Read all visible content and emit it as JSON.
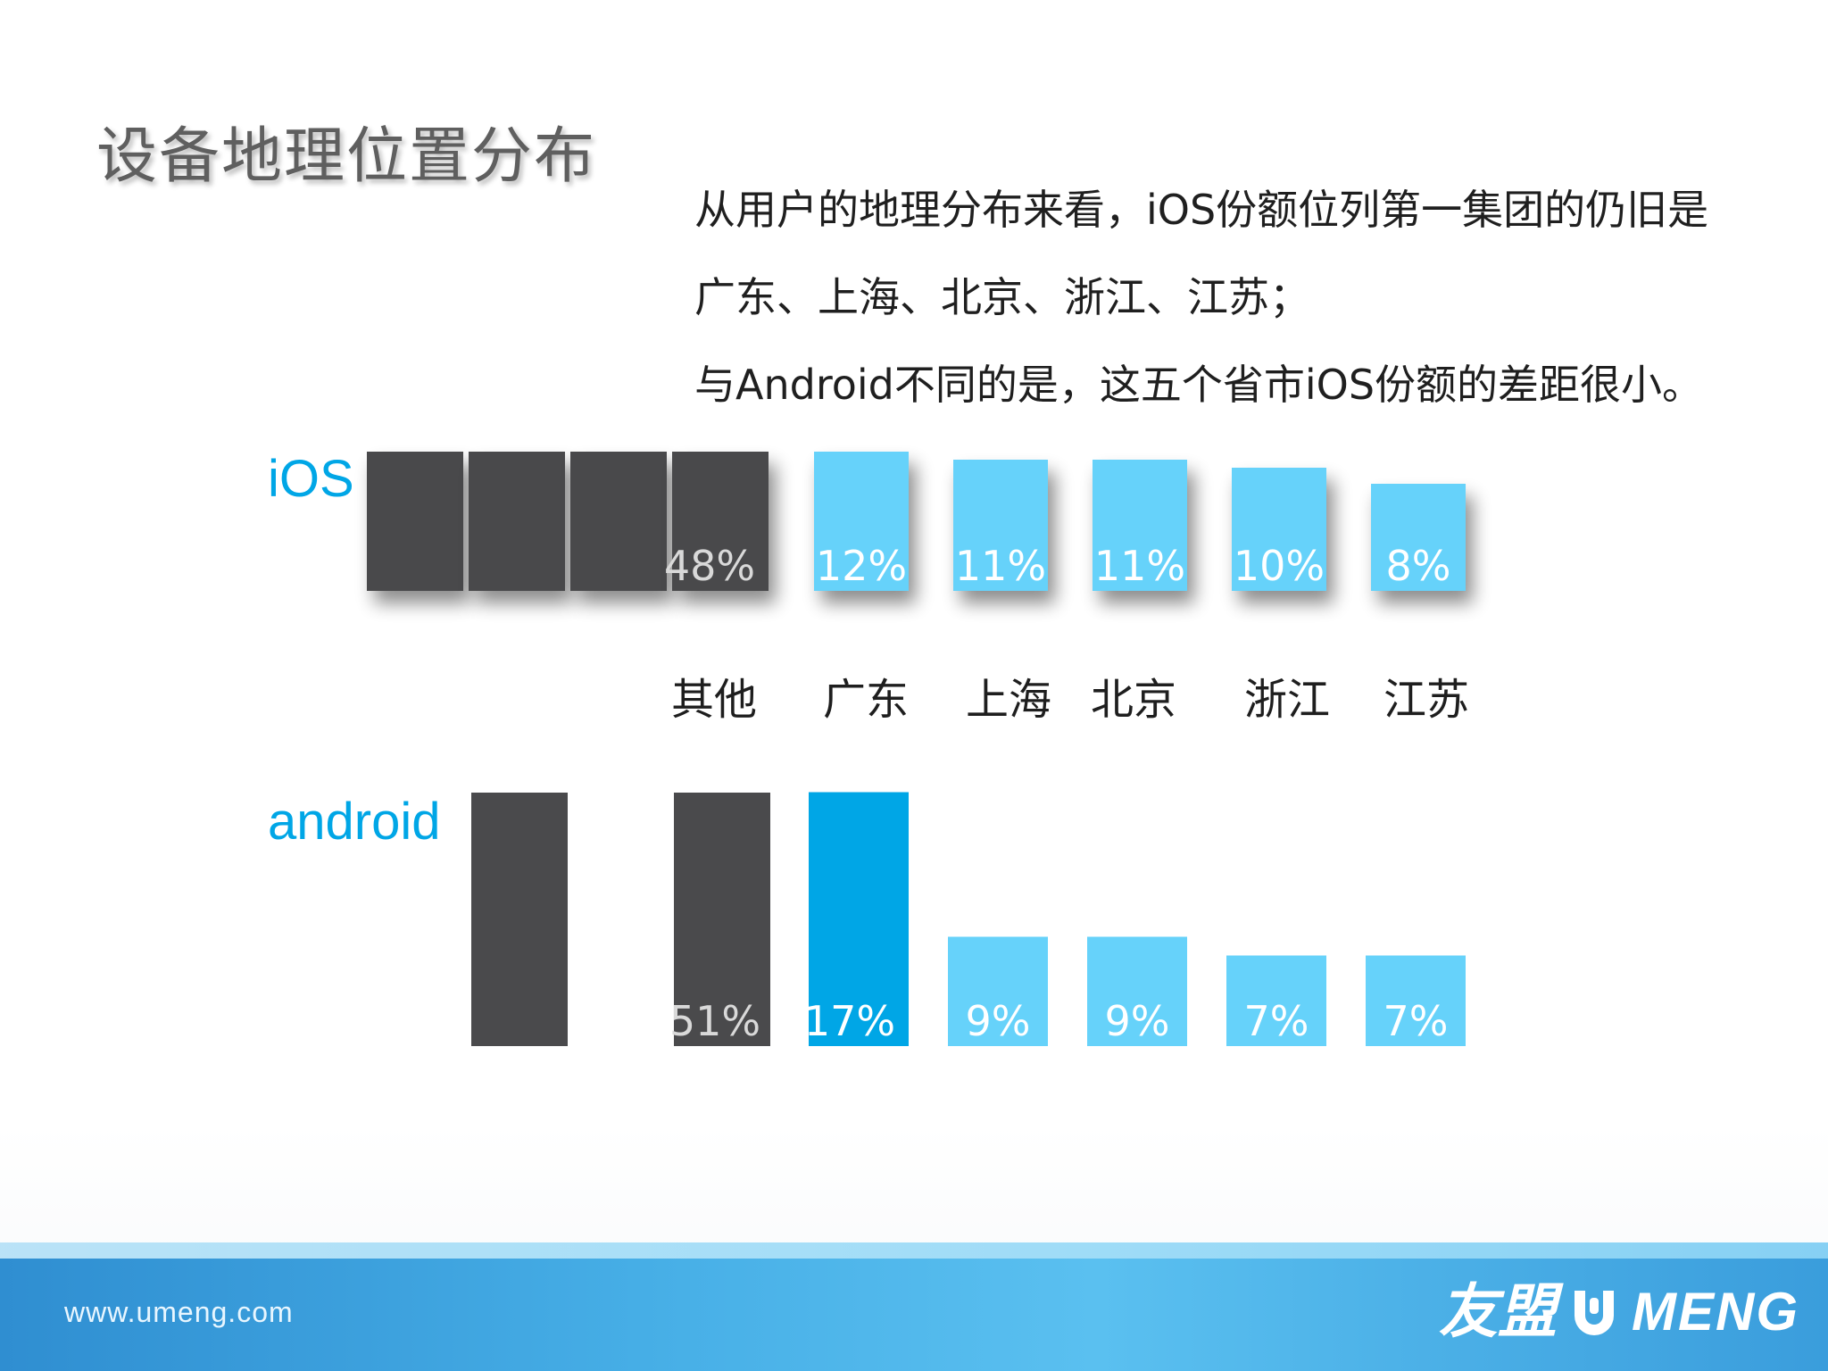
{
  "slide": {
    "title": "设备地理位置分布",
    "description_lines": [
      "从用户的地理分布来看，iOS份额位列第一集团的仍旧是",
      "广东、上海、北京、浙江、江苏；",
      "与Android不同的是，这五个省市iOS份额的差距很小。"
    ]
  },
  "chart_data": {
    "type": "bar",
    "categories": [
      "其他",
      "广东",
      "上海",
      "北京",
      "浙江",
      "江苏"
    ],
    "series": [
      {
        "name": "iOS",
        "values": [
          48,
          12,
          11,
          11,
          10,
          8
        ],
        "labels": [
          "48%",
          "12%",
          "11%",
          "11%",
          "10%",
          "8%"
        ]
      },
      {
        "name": "android",
        "values": [
          51,
          17,
          9,
          9,
          7,
          7
        ],
        "labels": [
          "51%",
          "17%",
          "9%",
          "9%",
          "7%",
          "7%"
        ]
      }
    ],
    "unit": "%",
    "colors": {
      "other": "#4a4a4c",
      "highlight": "#00a6e6",
      "province": "#66d2fa",
      "label_on_other": "#d9d9d9",
      "label_on_blue": "#ffffff"
    }
  },
  "footer": {
    "url": "www.umeng.com",
    "logo_cn": "友盟",
    "logo_en": "MENG"
  }
}
